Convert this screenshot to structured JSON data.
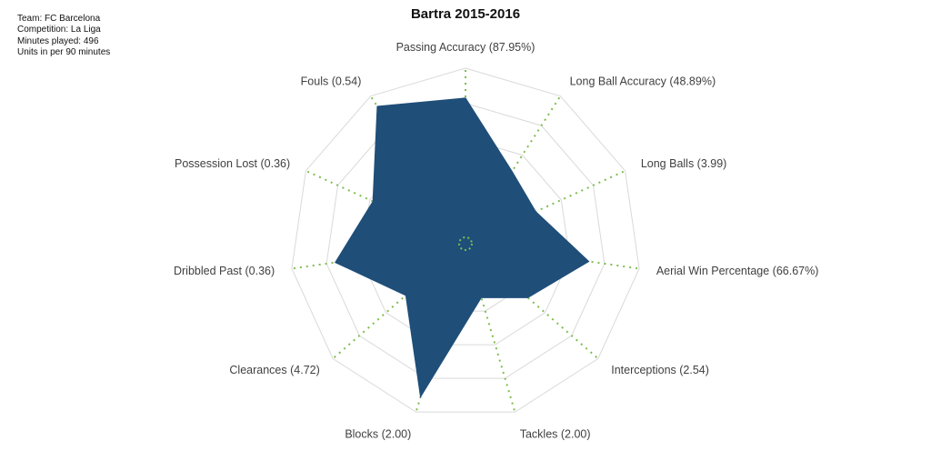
{
  "info": [
    "Team: FC Barcelona",
    "Competition: La Liga",
    "Minutes played: 496",
    "Units in per 90 minutes"
  ],
  "chart_data": {
    "type": "radar",
    "title": "Bartra 2015-2016",
    "axes": [
      "Passing Accuracy (87.95%)",
      "Long Ball Accuracy (48.89%)",
      "Long Balls (3.99)",
      "Aerial Win Percentage (66.67%)",
      "Interceptions (2.54)",
      "Tackles (2.00)",
      "Blocks (2.00)",
      "Clearances (4.72)",
      "Dribbled Past (0.36)",
      "Possession Lost (0.36)",
      "Fouls (0.54)"
    ],
    "series": [
      {
        "values": [
          0.83,
          0.49,
          0.44,
          0.71,
          0.47,
          0.32,
          0.91,
          0.45,
          0.75,
          0.58,
          0.93
        ]
      }
    ],
    "rlim": [
      0,
      1
    ],
    "rings": 5,
    "colors": {
      "fill": "#1f4e79",
      "spokes": "#7dbd4d",
      "rings": "#d9d9d9"
    }
  }
}
